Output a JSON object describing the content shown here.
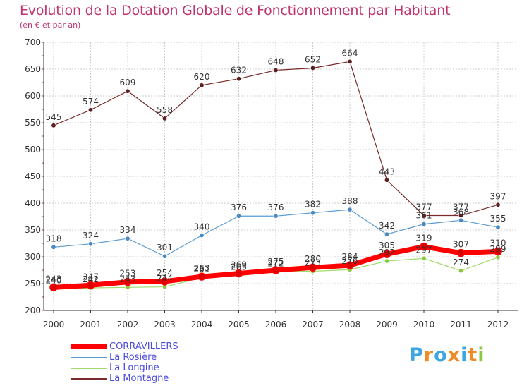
{
  "colors": {
    "title": "#c0356f",
    "axis": "#333333",
    "grid": "#cccccc",
    "legend_text": "#4a4adf"
  },
  "logo": {
    "text": "Proxiti",
    "colors": [
      "#3fa7df",
      "#f08a24",
      "#3fa7df",
      "#f08a24",
      "#3fa7df",
      "#f08a24",
      "#8dc63f"
    ]
  },
  "chart_data": {
    "type": "line",
    "title": "Evolution de la Dotation Globale de Fonctionnement par Habitant",
    "subtitle": "(en € et par an)",
    "xlabel": "",
    "ylabel": "",
    "ylim": [
      200,
      700
    ],
    "yticks": [
      200,
      250,
      300,
      350,
      400,
      450,
      500,
      550,
      600,
      650,
      700
    ],
    "x": [
      "2000",
      "2001",
      "2002",
      "2003",
      "2004",
      "2005",
      "2006",
      "2007",
      "2008",
      "2009",
      "2010",
      "2011",
      "2012"
    ],
    "grid": true,
    "legend_position": "bottom-left",
    "series": [
      {
        "name": "La Montagne",
        "color": "#7a2a2a",
        "marker": "#5c1f1f",
        "width": 1.2,
        "values": [
          545,
          574,
          609,
          558,
          620,
          632,
          648,
          652,
          664,
          443,
          377,
          377,
          397
        ],
        "labels": [
          "545",
          "574",
          "609",
          "558",
          "620",
          "632",
          "648",
          "652",
          "664",
          "443",
          "377",
          "377",
          "397"
        ]
      },
      {
        "name": "La Rosière",
        "color": "#5a9bcf",
        "marker": "#4a8ac0",
        "width": 1.2,
        "values": [
          318,
          324,
          334,
          301,
          340,
          376,
          376,
          382,
          388,
          342,
          361,
          368,
          355
        ],
        "labels": [
          "318",
          "324",
          "334",
          "301",
          "340",
          "376",
          "376",
          "382",
          "388",
          "342",
          "361",
          "368",
          "355"
        ]
      },
      {
        "name": "La Longine",
        "color": "#9edb6b",
        "marker": "#8dc63f",
        "width": 1.2,
        "values": [
          240,
          242,
          243,
          244,
          261,
          265,
          272,
          273,
          276,
          292,
          297,
          274,
          299
        ],
        "labels": [
          "240",
          "242",
          "243",
          "244",
          "261",
          "265",
          "272",
          "273",
          "276",
          "292",
          "297",
          "274",
          "299"
        ]
      },
      {
        "name": "CORRAVILLERS",
        "color": "#ff0000",
        "marker": "#dd0000",
        "width": 7,
        "values": [
          243,
          247,
          253,
          254,
          263,
          269,
          275,
          280,
          284,
          305,
          319,
          307,
          310
        ],
        "labels": [
          "243",
          "247",
          "253",
          "254",
          "263",
          "269",
          "275",
          "280",
          "284",
          "305",
          "319",
          "307",
          "310"
        ]
      }
    ],
    "legend": [
      "CORRAVILLERS",
      "La Rosière",
      "La Longine",
      "La Montagne"
    ]
  }
}
